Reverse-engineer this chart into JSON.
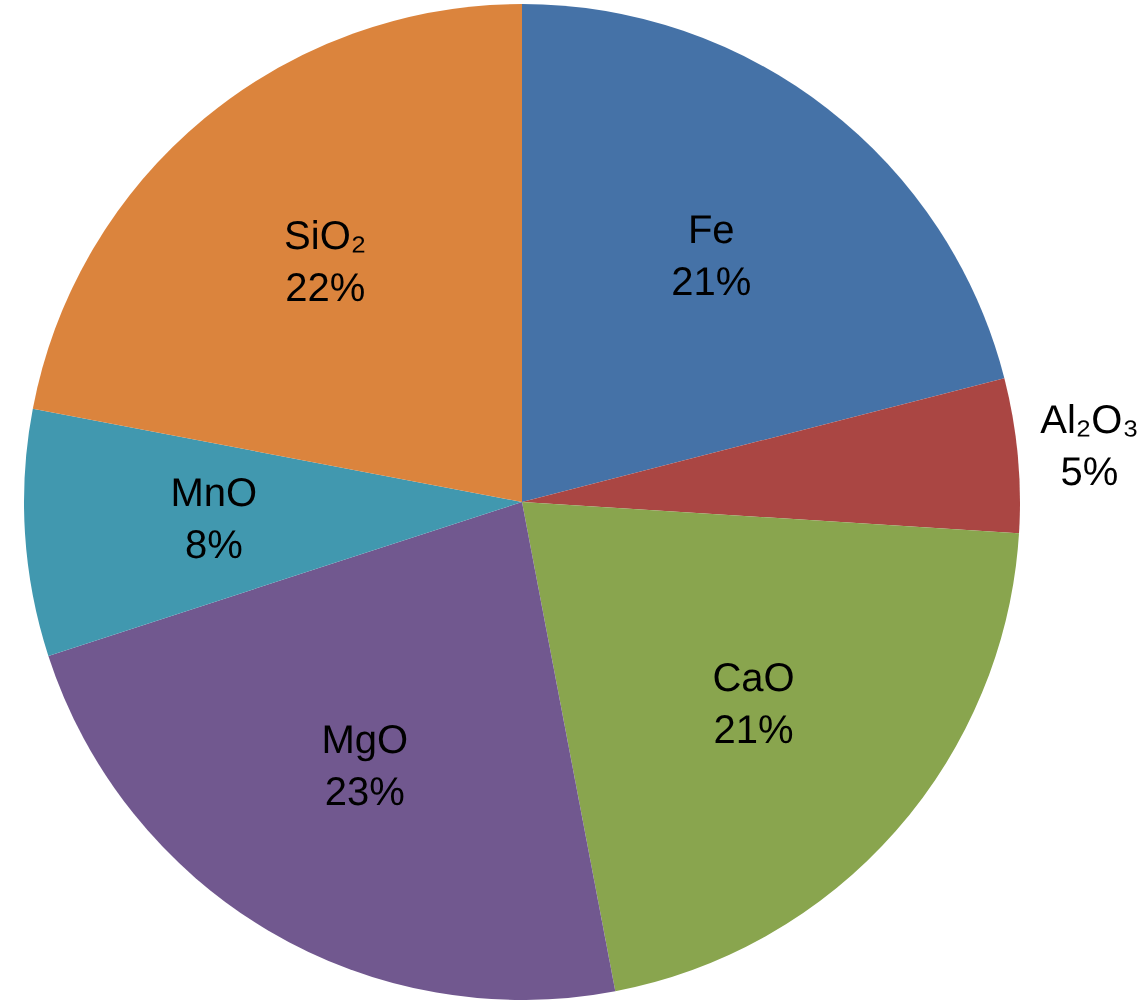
{
  "chart_data": {
    "type": "pie",
    "categories": [
      "Fe",
      "Al₂O₃",
      "CaO",
      "MgO",
      "MnO",
      "SiO₂"
    ],
    "values": [
      21,
      5,
      21,
      23,
      8,
      22
    ],
    "colors": [
      "#4572a7",
      "#aa4643",
      "#89a54e",
      "#71588f",
      "#4198af",
      "#db843d"
    ],
    "value_labels": [
      "21%",
      "5%",
      "21%",
      "23%",
      "8%",
      "22%"
    ],
    "legend": false
  }
}
